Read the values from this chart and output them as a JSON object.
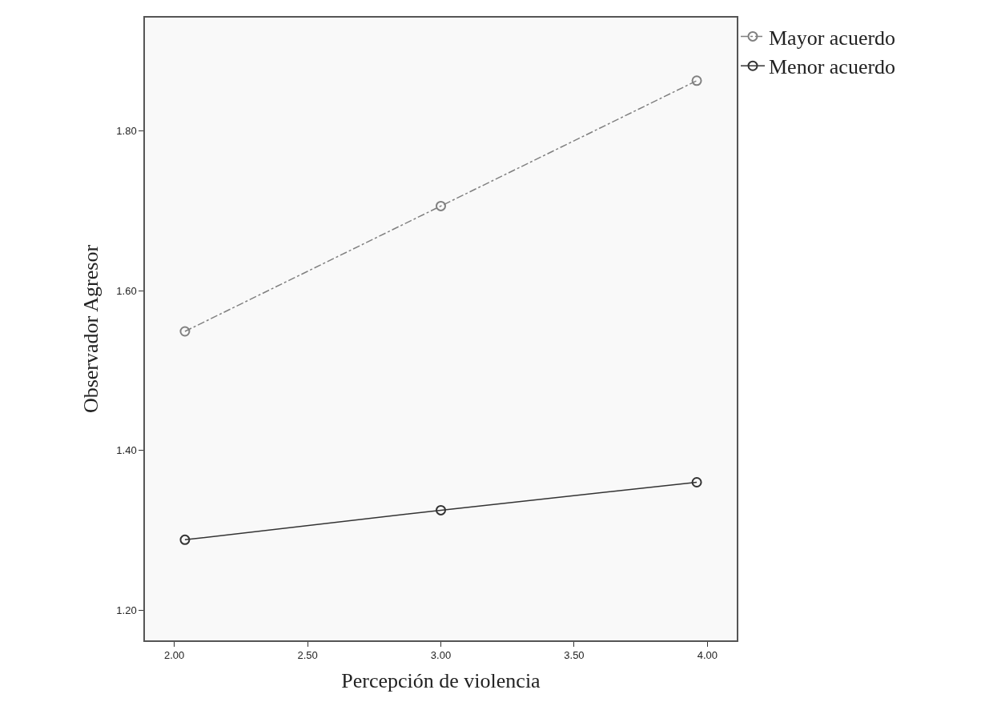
{
  "chart_data": {
    "type": "line",
    "xlabel": "Percepción de violencia",
    "ylabel": "Observador Agresor",
    "x": [
      2.04,
      3.0,
      3.96
    ],
    "series": [
      {
        "name": "Mayor acuerdo",
        "color": "#808080",
        "values": [
          1.549,
          1.706,
          1.863
        ],
        "line_style": "dashdot"
      },
      {
        "name": "Menor acuerdo",
        "color": "#333333",
        "values": [
          1.288,
          1.325,
          1.36
        ],
        "line_style": "solid"
      }
    ],
    "xlim": [
      1.89,
      4.11
    ],
    "xticks": [
      {
        "value": 2,
        "label": "2.00"
      },
      {
        "value": 2.5,
        "label": "2.50"
      },
      {
        "value": 3,
        "label": "3.00"
      },
      {
        "value": 3.5,
        "label": "3.50"
      },
      {
        "value": 4,
        "label": "4.00"
      }
    ],
    "ylim": [
      1.162,
      1.942
    ],
    "yticks": [
      {
        "value": 1.2,
        "label": "1.20"
      },
      {
        "value": 1.4,
        "label": "1.40"
      },
      {
        "value": 1.6,
        "label": "1.60"
      },
      {
        "value": 1.8,
        "label": "1.80"
      }
    ],
    "marker": "circle",
    "grid": false,
    "legend": "top right"
  }
}
